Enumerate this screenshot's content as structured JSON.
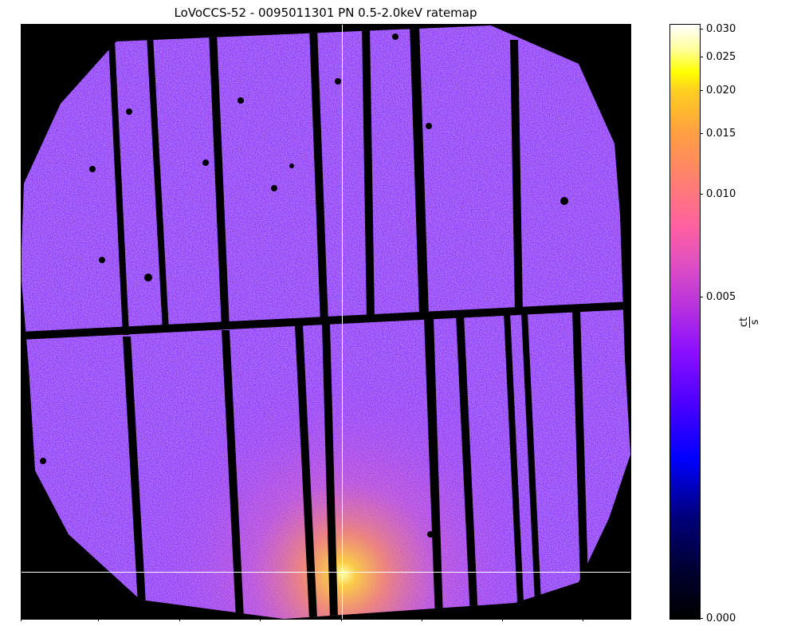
{
  "title": "LoVoCCS-52 - 0095011301 PN 0.5-2.0keV ratemap",
  "image": {
    "description_icon": "xray-ratemap-image",
    "background_color": "#000000",
    "detector_colors": {
      "low": "#5a1cff",
      "mid": "#a040f0",
      "high": "#ff70a0",
      "core": "#ffff40"
    }
  },
  "colorbar": {
    "unit_numerator": "ct",
    "unit_denominator": "s",
    "ticks": [
      {
        "label": "0.030",
        "value": 0.03
      },
      {
        "label": "0.025",
        "value": 0.025
      },
      {
        "label": "0.020",
        "value": 0.02
      },
      {
        "label": "0.015",
        "value": 0.015
      },
      {
        "label": "0.010",
        "value": 0.01
      },
      {
        "label": "0.005",
        "value": 0.005
      },
      {
        "label": "0.000",
        "value": 0.0
      }
    ]
  }
}
